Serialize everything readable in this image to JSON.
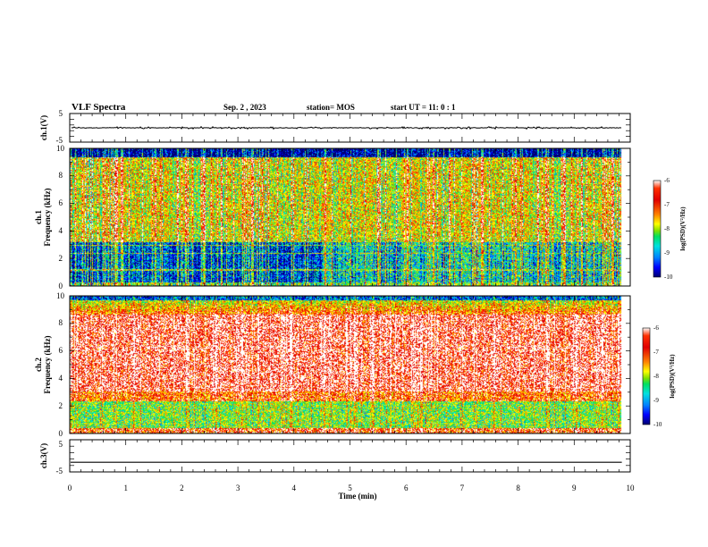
{
  "header": {
    "title": "VLF Spectra",
    "date": "Sep. 2 , 2023",
    "station": "station= MOS",
    "start": "start UT =   11: 0  : 1"
  },
  "chart_data": [
    {
      "type": "line",
      "id": "ch1-waveform",
      "ylabel": "ch.1(V)",
      "ylim": [
        -5,
        5
      ],
      "y_ticks": [
        "5",
        "-5"
      ],
      "xlim": [
        0,
        10
      ],
      "baseline": 0,
      "burst_amplitude_V": 0.4
    },
    {
      "type": "heatmap",
      "id": "ch1-spectrogram",
      "ylabel": "ch.1\nFrequency (kHz)",
      "ylim": [
        0,
        10
      ],
      "y_ticks": [
        "0",
        "2",
        "4",
        "6",
        "8",
        "10"
      ],
      "xlim": [
        0,
        10
      ],
      "data_end_min": 9.85,
      "colorbar": {
        "label": "log(PSD)(V²/Hz)",
        "range": [
          -10,
          -6
        ],
        "ticks": [
          "-6",
          "-7",
          "-8",
          "-9",
          "-10"
        ]
      }
    },
    {
      "type": "heatmap",
      "id": "ch2-spectrogram",
      "ylabel": "ch.2\nFrequency (kHz)",
      "ylim": [
        0,
        10
      ],
      "y_ticks": [
        "0",
        "2",
        "4",
        "6",
        "8",
        "10"
      ],
      "xlim": [
        0,
        10
      ],
      "data_end_min": 9.85,
      "colorbar": {
        "label": "log(PSD)(V²/Hz)",
        "range": [
          -10,
          -6
        ],
        "ticks": [
          "-6",
          "-7",
          "-8",
          "-9",
          "-10"
        ]
      }
    },
    {
      "type": "line",
      "id": "ch3-waveform",
      "ylabel": "ch.3(V)",
      "ylim": [
        -5,
        5
      ],
      "y_ticks": [
        "5",
        "0",
        "-5"
      ],
      "xlim": [
        0,
        10
      ],
      "baseline_V": -2,
      "xlabel": "Time (min)",
      "x_ticks": [
        "0",
        "1",
        "2",
        "3",
        "4",
        "5",
        "6",
        "7",
        "8",
        "9",
        "10"
      ]
    }
  ],
  "palette": [
    "#000070",
    "#0000ff",
    "#0080ff",
    "#00e0e0",
    "#00e060",
    "#a0e000",
    "#ffff00",
    "#ffa000",
    "#ff3000",
    "#e00000",
    "#ffffff"
  ]
}
